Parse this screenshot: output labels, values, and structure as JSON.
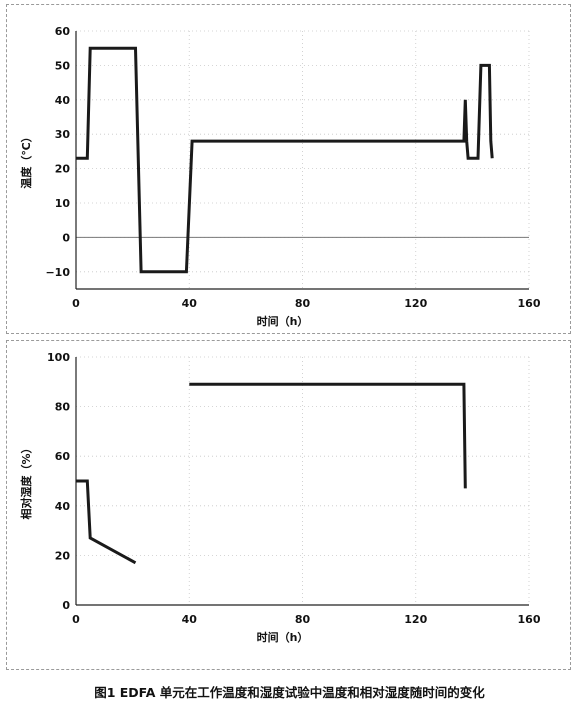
{
  "caption": "图1 EDFA 单元在工作温度和湿度试验中温度和相对湿度随时间的变化",
  "chart_data": [
    {
      "type": "line",
      "xlabel": "时间（h）",
      "ylabel": "温度（℃）",
      "xlim": [
        0,
        160
      ],
      "ylim": [
        -15,
        60
      ],
      "xticks": [
        0,
        40,
        80,
        120,
        160
      ],
      "xtick_labels": [
        "0",
        "40",
        "80",
        "120",
        "160"
      ],
      "yticks": [
        60,
        50,
        40,
        30,
        20,
        10,
        0,
        -10
      ],
      "ytick_labels": [
        "60",
        "50",
        "40",
        "30",
        "20",
        "10",
        "0",
        "−10"
      ],
      "grid": true,
      "zero_line": true,
      "series": [
        {
          "x": [
            0,
            4,
            5,
            21,
            23,
            39,
            41,
            137,
            137.5,
            138,
            138.5,
            142,
            143,
            146,
            146.5,
            147
          ],
          "y": [
            23,
            23,
            55,
            55,
            -10,
            -10,
            28,
            28,
            40,
            28,
            23,
            23,
            50,
            50,
            28,
            23
          ]
        }
      ]
    },
    {
      "type": "line",
      "xlabel": "时间（h）",
      "ylabel": "相对湿度（%）",
      "xlim": [
        0,
        160
      ],
      "ylim": [
        0,
        100
      ],
      "xticks": [
        0,
        40,
        80,
        120,
        160
      ],
      "xtick_labels": [
        "0",
        "40",
        "80",
        "120",
        "160"
      ],
      "yticks": [
        100,
        80,
        60,
        40,
        20,
        0
      ],
      "ytick_labels": [
        "100",
        "80",
        "60",
        "40",
        "20",
        "0"
      ],
      "grid": true,
      "zero_line": false,
      "series": [
        {
          "x": [
            0,
            4,
            5,
            21
          ],
          "y": [
            50,
            50,
            27,
            17
          ]
        },
        {
          "x": [
            40,
            137,
            137,
            137.5
          ],
          "y": [
            89,
            89,
            89,
            47
          ]
        }
      ]
    }
  ]
}
